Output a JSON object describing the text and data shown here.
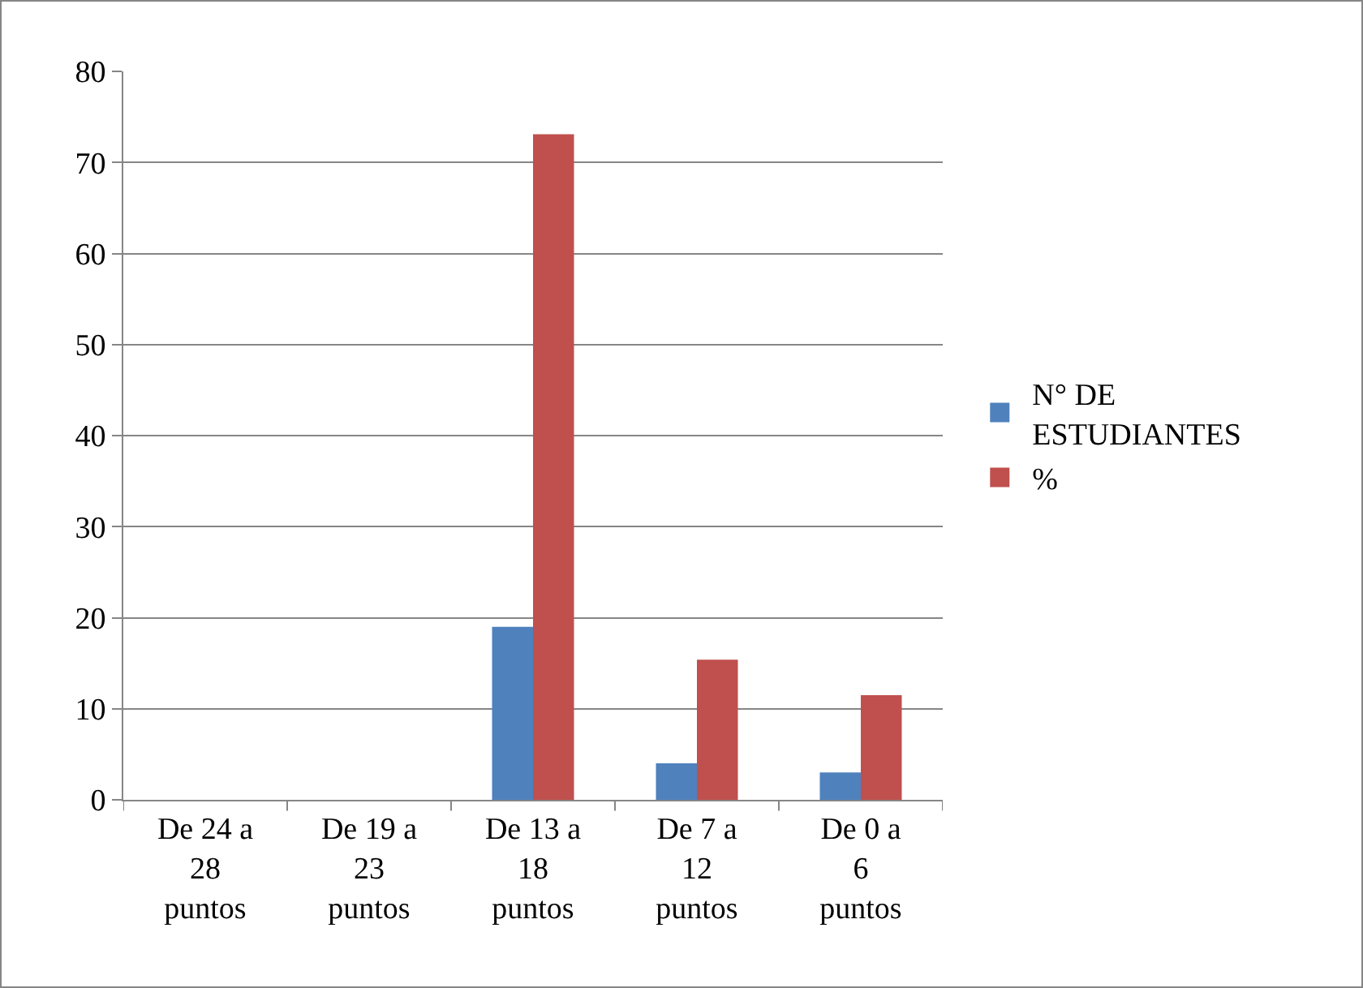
{
  "chart_data": {
    "type": "bar",
    "categories": [
      "De 24 a 28 puntos",
      "De 19 a 23 puntos",
      "De 13 a 18 puntos",
      "De 7 a 12 puntos",
      "De 0 a 6 puntos"
    ],
    "series": [
      {
        "name": "N° DE ESTUDIANTES",
        "color": "#4f81bd",
        "values": [
          0,
          0,
          19,
          4,
          3
        ]
      },
      {
        "name": "%",
        "color": "#c0504d",
        "values": [
          0,
          0,
          73.1,
          15.4,
          11.5
        ]
      }
    ],
    "ylim": [
      0,
      80
    ],
    "yticks": [
      0,
      10,
      20,
      30,
      40,
      50,
      60,
      70,
      80
    ],
    "grid": "y",
    "legend": "right"
  }
}
